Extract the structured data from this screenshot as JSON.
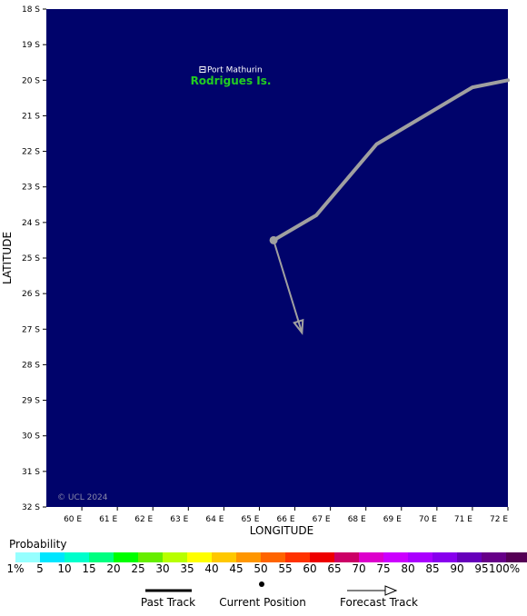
{
  "map": {
    "background_color": "#00036b",
    "lon_range": [
      59,
      72
    ],
    "lat_range": [
      18,
      32
    ],
    "x_ticks": [
      "60 E",
      "61 E",
      "62 E",
      "63 E",
      "64 E",
      "65 E",
      "66 E",
      "67 E",
      "68 E",
      "69 E",
      "70 E",
      "71 E",
      "72 E"
    ],
    "y_ticks": [
      "18 S",
      "19 S",
      "20 S",
      "21 S",
      "22 S",
      "23 S",
      "24 S",
      "25 S",
      "26 S",
      "27 S",
      "28 S",
      "29 S",
      "30 S",
      "31 S",
      "32 S"
    ],
    "xlabel": "LONGITUDE",
    "ylabel": "LATITUDE",
    "copyright": "© UCL 2024",
    "places": [
      {
        "name": "Port Mathurin",
        "lon": 63.4,
        "lat": 19.7
      }
    ],
    "islands": [
      {
        "name": "Rodrigues Is.",
        "color": "#22cc22"
      }
    ],
    "past_track": {
      "color": "#a0a0a0",
      "points": [
        [
          72.0,
          20.0
        ],
        [
          71.0,
          20.2
        ],
        [
          68.3,
          21.8
        ],
        [
          66.6,
          23.8
        ],
        [
          65.4,
          24.5
        ]
      ]
    },
    "current_position": {
      "lon": 65.4,
      "lat": 24.5,
      "color": "#a0a0a0"
    },
    "forecast_track": {
      "color": "#a0a0a0",
      "points": [
        [
          65.4,
          24.5
        ],
        [
          66.2,
          27.1
        ]
      ]
    }
  },
  "legend": {
    "title": "Probability",
    "colors": [
      "#96ffff",
      "#00e6ff",
      "#00ffcc",
      "#00ff80",
      "#00ff00",
      "#66ee00",
      "#b8ff00",
      "#ffff00",
      "#ffc800",
      "#ff9600",
      "#ff6400",
      "#ff3200",
      "#ee0000",
      "#cc0066",
      "#dd00cc",
      "#cc00ff",
      "#aa00ff",
      "#8800ee",
      "#6600bb",
      "#660088",
      "#550055"
    ],
    "labels": [
      "1%",
      "5",
      "10",
      "15",
      "20",
      "25",
      "30",
      "35",
      "40",
      "45",
      "50",
      "55",
      "60",
      "65",
      "70",
      "75",
      "80",
      "85",
      "90",
      "95",
      "100%"
    ],
    "past_track_label": "Past Track",
    "current_position_label": "Current Position",
    "forecast_track_label": "Forecast Track"
  }
}
